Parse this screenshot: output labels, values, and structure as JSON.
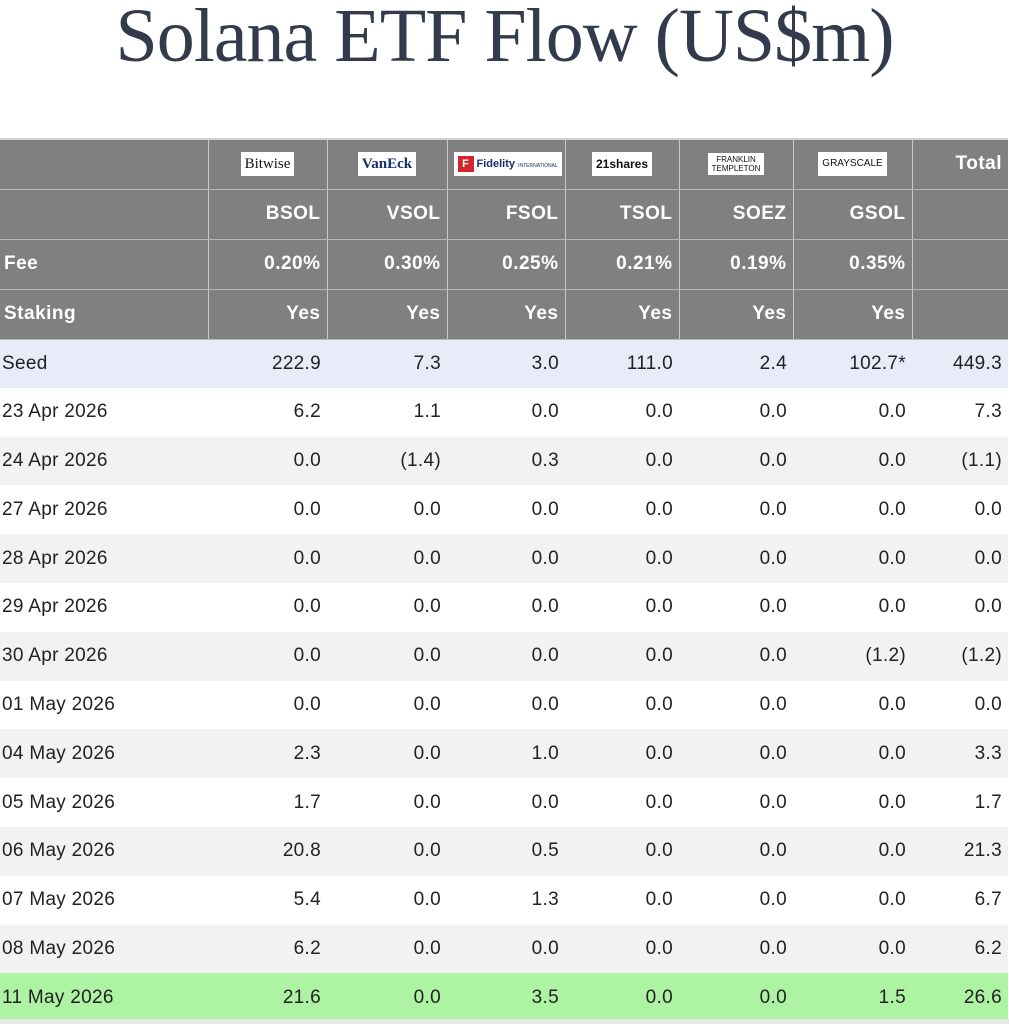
{
  "title": "Solana ETF Flow (US$m)",
  "issuers": [
    {
      "logo": "Bitwise",
      "ticker": "BSOL",
      "fee": "0.20%",
      "staking": "Yes"
    },
    {
      "logo": "VanEck",
      "ticker": "VSOL",
      "fee": "0.30%",
      "staking": "Yes"
    },
    {
      "logo": "Fidelity",
      "logo_sub": "INTERNATIONAL",
      "ticker": "FSOL",
      "fee": "0.25%",
      "staking": "Yes"
    },
    {
      "logo": "21shares",
      "ticker": "TSOL",
      "fee": "0.21%",
      "staking": "Yes"
    },
    {
      "logo": "FRANKLIN",
      "logo_sub": "TEMPLETON",
      "ticker": "SOEZ",
      "fee": "0.19%",
      "staking": "Yes"
    },
    {
      "logo": "GRAYSCALE",
      "ticker": "GSOL",
      "fee": "0.35%",
      "staking": "Yes"
    }
  ],
  "total_label": "Total",
  "fee_label": "Fee",
  "staking_label": "Staking",
  "rows": [
    {
      "label": "Seed",
      "values": [
        "222.9",
        "7.3",
        "3.0",
        "111.0",
        "2.4",
        "102.7*"
      ],
      "total": "449.3"
    },
    {
      "label": "23 Apr 2026",
      "values": [
        "6.2",
        "1.1",
        "0.0",
        "0.0",
        "0.0",
        "0.0"
      ],
      "total": "7.3"
    },
    {
      "label": "24 Apr 2026",
      "values": [
        "0.0",
        "(1.4)",
        "0.3",
        "0.0",
        "0.0",
        "0.0"
      ],
      "total": "(1.1)"
    },
    {
      "label": "27 Apr 2026",
      "values": [
        "0.0",
        "0.0",
        "0.0",
        "0.0",
        "0.0",
        "0.0"
      ],
      "total": "0.0"
    },
    {
      "label": "28 Apr 2026",
      "values": [
        "0.0",
        "0.0",
        "0.0",
        "0.0",
        "0.0",
        "0.0"
      ],
      "total": "0.0"
    },
    {
      "label": "29 Apr 2026",
      "values": [
        "0.0",
        "0.0",
        "0.0",
        "0.0",
        "0.0",
        "0.0"
      ],
      "total": "0.0"
    },
    {
      "label": "30 Apr 2026",
      "values": [
        "0.0",
        "0.0",
        "0.0",
        "0.0",
        "0.0",
        "(1.2)"
      ],
      "total": "(1.2)"
    },
    {
      "label": "01 May 2026",
      "values": [
        "0.0",
        "0.0",
        "0.0",
        "0.0",
        "0.0",
        "0.0"
      ],
      "total": "0.0"
    },
    {
      "label": "04 May 2026",
      "values": [
        "2.3",
        "0.0",
        "1.0",
        "0.0",
        "0.0",
        "0.0"
      ],
      "total": "3.3"
    },
    {
      "label": "05 May 2026",
      "values": [
        "1.7",
        "0.0",
        "0.0",
        "0.0",
        "0.0",
        "0.0"
      ],
      "total": "1.7"
    },
    {
      "label": "06 May 2026",
      "values": [
        "20.8",
        "0.0",
        "0.5",
        "0.0",
        "0.0",
        "0.0"
      ],
      "total": "21.3"
    },
    {
      "label": "07 May 2026",
      "values": [
        "5.4",
        "0.0",
        "1.3",
        "0.0",
        "0.0",
        "0.0"
      ],
      "total": "6.7"
    },
    {
      "label": "08 May 2026",
      "values": [
        "6.2",
        "0.0",
        "0.0",
        "0.0",
        "0.0",
        "0.0"
      ],
      "total": "6.2"
    },
    {
      "label": "11 May 2026",
      "values": [
        "21.6",
        "0.0",
        "3.5",
        "0.0",
        "0.0",
        "1.5"
      ],
      "total": "26.6"
    }
  ],
  "colors": {
    "header_bg": "#808080",
    "negative": "#e0332e",
    "seed_bg": "#e8ecf8",
    "latest_bg": "#aef3a3",
    "alt_row_bg": "#f2f2f2"
  }
}
